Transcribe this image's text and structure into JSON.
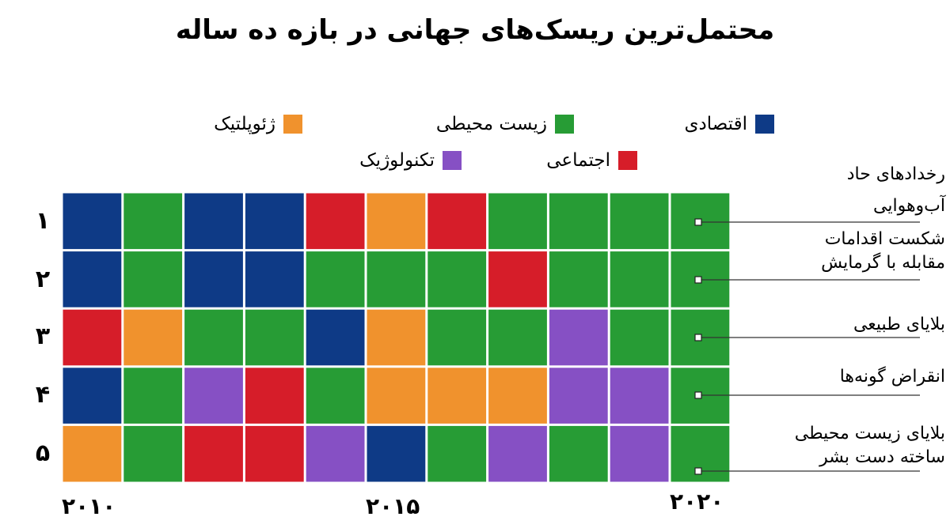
{
  "title": "محتمل‌ترین ریسک‌های جهانی در بازه ده ساله",
  "legend": [
    {
      "label": "اقتصادی",
      "color": "#0e3a86"
    },
    {
      "label": "زیست محیطی",
      "color": "#279c35"
    },
    {
      "label": "ژئوپلتیک",
      "color": "#f0922d"
    },
    {
      "label": "اجتماعی",
      "color": "#d61d29"
    },
    {
      "label": "تکنولوژیک",
      "color": "#8650c4"
    }
  ],
  "chart_data": {
    "type": "heatmap",
    "title": "محتمل‌ترین ریسک‌های جهانی در بازه ده ساله",
    "rank_labels": [
      "۱",
      "۲",
      "۳",
      "۴",
      "۵"
    ],
    "years": [
      2010,
      2011,
      2012,
      2013,
      2014,
      2015,
      2016,
      2017,
      2018,
      2019,
      2020
    ],
    "x_tick_labels": [
      "۲۰۱۰",
      "۲۰۱۵",
      "۲۰۲۰"
    ],
    "x_tick_years": [
      2010,
      2015,
      2020
    ],
    "categories": {
      "E": "اقتصادی",
      "N": "زیست محیطی",
      "G": "ژئوپلتیک",
      "S": "اجتماعی",
      "T": "تکنولوژیک"
    },
    "rows": [
      [
        "E",
        "N",
        "E",
        "E",
        "S",
        "G",
        "S",
        "N",
        "N",
        "N",
        "N"
      ],
      [
        "E",
        "N",
        "E",
        "E",
        "N",
        "N",
        "N",
        "S",
        "N",
        "N",
        "N"
      ],
      [
        "S",
        "G",
        "N",
        "N",
        "E",
        "G",
        "N",
        "N",
        "T",
        "N",
        "N"
      ],
      [
        "E",
        "N",
        "T",
        "S",
        "N",
        "G",
        "G",
        "G",
        "T",
        "T",
        "N"
      ],
      [
        "G",
        "N",
        "S",
        "S",
        "T",
        "E",
        "N",
        "T",
        "N",
        "T",
        "N"
      ]
    ],
    "annotations_2020": [
      "رخدادهای حاد آب‌وهوایی",
      "شکست اقدامات مقابله با گرمایش",
      "بلایای طبیعی",
      "انقراض گونه‌ها",
      "بلایای زیست محیطی ساخته دست بشر"
    ]
  },
  "annotations": [
    {
      "line1": "رخدادهای حاد",
      "line2": "آب‌وهوایی"
    },
    {
      "line1": "شکست اقدامات",
      "line2": "مقابله با گرمایش"
    },
    {
      "line1": "بلایای طبیعی",
      "line2": ""
    },
    {
      "line1": "انقراض گونه‌ها",
      "line2": ""
    },
    {
      "line1": "بلایای زیست محیطی",
      "line2": "ساخته دست بشر"
    }
  ]
}
